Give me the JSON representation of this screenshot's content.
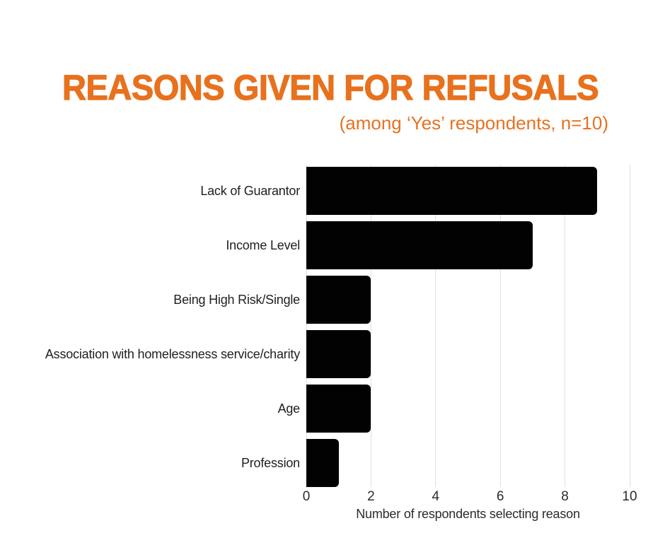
{
  "header": {
    "title": "REASONS GIVEN FOR REFUSALS",
    "subtitle": "(among ‘Yes’ respondents, n=10)"
  },
  "chart_data": {
    "type": "bar",
    "orientation": "horizontal",
    "title": "REASONS GIVEN FOR REFUSALS",
    "subtitle": "(among ‘Yes’ respondents, n=10)",
    "categories": [
      "Lack of Guarantor",
      "Income Level",
      "Being High Risk/Single",
      "Association with homelessness service/charity",
      "Age",
      "Profession"
    ],
    "values": [
      9,
      7,
      2,
      2,
      2,
      1
    ],
    "xlabel": "Number of respondents selecting reason",
    "xticks": [
      0,
      2,
      4,
      6,
      8,
      10
    ],
    "xlim": [
      0,
      10
    ],
    "grid": true,
    "legend": "none"
  },
  "colors": {
    "accent": "#E8711E",
    "bar": "#020202",
    "gridline": "#E0E0E0",
    "label": "#1F1F1F",
    "tick": "#2B2B2B"
  }
}
